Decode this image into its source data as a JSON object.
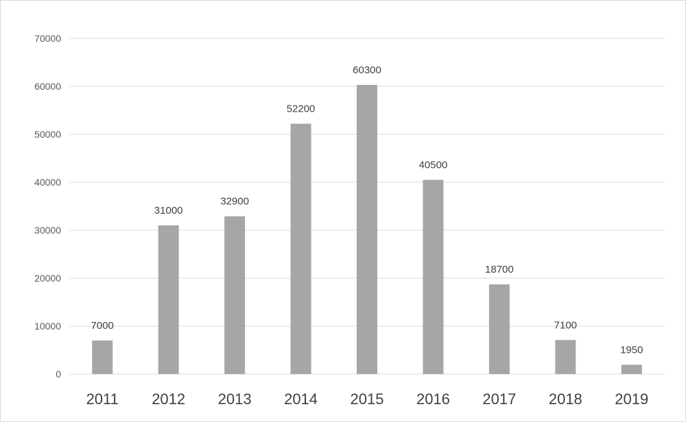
{
  "chart_data": {
    "type": "bar",
    "categories": [
      "2011",
      "2012",
      "2013",
      "2014",
      "2015",
      "2016",
      "2017",
      "2018",
      "2019"
    ],
    "values": [
      7000,
      31000,
      32900,
      52200,
      60300,
      40500,
      18700,
      7100,
      1950
    ],
    "data_labels": [
      "7000",
      "31000",
      "32900",
      "52200",
      "60300",
      "40500",
      "18700",
      "7100",
      "1950"
    ],
    "y_ticks": [
      0,
      10000,
      20000,
      30000,
      40000,
      50000,
      60000,
      70000
    ],
    "ylim": [
      0,
      70000
    ],
    "grid": true,
    "legend": "none",
    "bar_color": "#a8a5a6",
    "grid_color": "#d9d9d9"
  }
}
